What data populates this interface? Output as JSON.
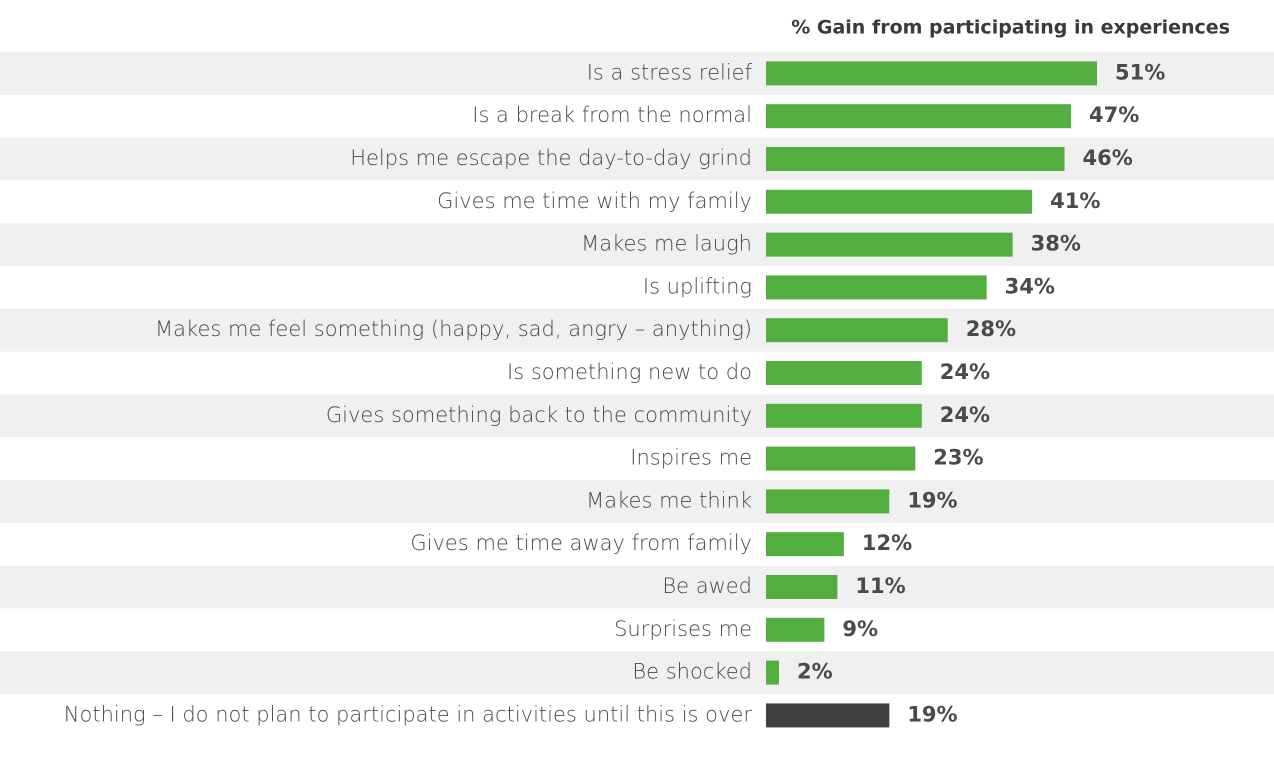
{
  "chart_data": {
    "type": "bar",
    "orientation": "horizontal",
    "title": "% Gain from participating in experiences",
    "categories": [
      "Is a stress relief",
      "Is a break from the normal",
      "Helps me escape the day-to-day grind",
      "Gives me time with my family",
      "Makes me laugh",
      "Is uplifting",
      "Makes me feel something (happy, sad, angry – anything)",
      "Is something new to do",
      "Gives something back to the community",
      "Inspires me",
      "Makes me think",
      "Gives me time away from family",
      "Be awed",
      "Surprises me",
      "Be shocked",
      "Nothing – I do not plan to participate in activities until this is over"
    ],
    "values": [
      51,
      47,
      46,
      41,
      38,
      34,
      28,
      24,
      24,
      23,
      19,
      12,
      11,
      9,
      2,
      19
    ],
    "value_labels": [
      "51%",
      "47%",
      "46%",
      "41%",
      "38%",
      "34%",
      "28%",
      "24%",
      "24%",
      "23%",
      "19%",
      "12%",
      "11%",
      "9%",
      "2%",
      "19%"
    ],
    "colors": [
      "#52ae3f",
      "#52ae3f",
      "#52ae3f",
      "#52ae3f",
      "#52ae3f",
      "#52ae3f",
      "#52ae3f",
      "#52ae3f",
      "#52ae3f",
      "#52ae3f",
      "#52ae3f",
      "#52ae3f",
      "#52ae3f",
      "#52ae3f",
      "#52ae3f",
      "#404040"
    ]
  }
}
